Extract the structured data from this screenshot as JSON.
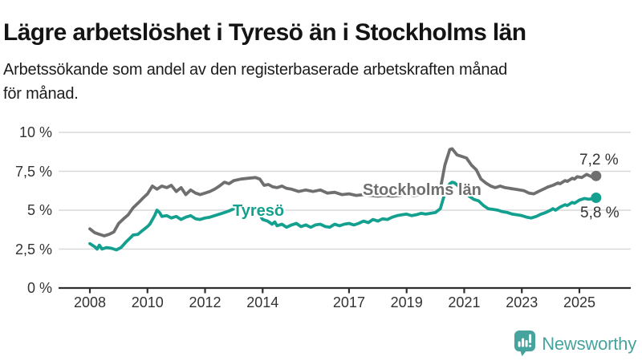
{
  "header": {
    "title": "Lägre arbetslöshet i Tyresö än i Stockholms län",
    "subtitle_line1": "Arbetssökande som andel av den registerbaserade arbetskraften månad",
    "subtitle_line2": "för månad."
  },
  "footer": {
    "brand": "Newsworthy",
    "logo_icon": "bar-chart-speech-bubble-icon"
  },
  "colors": {
    "tyreso": "#14a08f",
    "stockholm": "#6f6f6f",
    "grid": "#d9d9d9",
    "axis": "#2f2f2f",
    "text": "#333333",
    "brand": "#47a39e"
  },
  "chart_data": {
    "type": "line",
    "title": "Lägre arbetslöshet i Tyresö än i Stockholms län",
    "xlabel": "",
    "ylabel": "",
    "x_range": [
      2008,
      2025.7
    ],
    "ylim": [
      0,
      10
    ],
    "grid": "horizontal",
    "legend_position": "inline-labels",
    "y_axis": {
      "ticks": [
        0,
        2.5,
        5,
        7.5,
        10
      ],
      "labels": [
        "0 %",
        "2,5 %",
        "5 %",
        "7,5 %",
        "10 %"
      ]
    },
    "x_axis": {
      "ticks": [
        2008,
        2010,
        2012,
        2014,
        2017,
        2019,
        2021,
        2023,
        2025
      ],
      "labels": [
        "2008",
        "2010",
        "2012",
        "2014",
        "2017",
        "2019",
        "2021",
        "2023",
        "2025"
      ]
    },
    "series": [
      {
        "name": "Stockholms län",
        "color_key": "stockholm",
        "end_label": "7,2 %",
        "end_value": 7.2,
        "points": [
          [
            2008.0,
            3.8
          ],
          [
            2008.17,
            3.55
          ],
          [
            2008.33,
            3.45
          ],
          [
            2008.5,
            3.35
          ],
          [
            2008.67,
            3.45
          ],
          [
            2008.83,
            3.6
          ],
          [
            2009.0,
            4.15
          ],
          [
            2009.17,
            4.45
          ],
          [
            2009.33,
            4.7
          ],
          [
            2009.5,
            5.15
          ],
          [
            2009.67,
            5.45
          ],
          [
            2009.83,
            5.75
          ],
          [
            2010.0,
            6.05
          ],
          [
            2010.17,
            6.55
          ],
          [
            2010.33,
            6.35
          ],
          [
            2010.5,
            6.55
          ],
          [
            2010.67,
            6.45
          ],
          [
            2010.83,
            6.6
          ],
          [
            2011.0,
            6.2
          ],
          [
            2011.17,
            6.45
          ],
          [
            2011.33,
            6.0
          ],
          [
            2011.5,
            6.3
          ],
          [
            2011.67,
            6.1
          ],
          [
            2011.83,
            6.0
          ],
          [
            2012.0,
            6.1
          ],
          [
            2012.17,
            6.2
          ],
          [
            2012.33,
            6.35
          ],
          [
            2012.5,
            6.55
          ],
          [
            2012.67,
            6.8
          ],
          [
            2012.83,
            6.7
          ],
          [
            2013.0,
            6.9
          ],
          [
            2013.25,
            7.0
          ],
          [
            2013.5,
            7.05
          ],
          [
            2013.75,
            7.1
          ],
          [
            2013.9,
            7.0
          ],
          [
            2014.05,
            6.6
          ],
          [
            2014.2,
            6.65
          ],
          [
            2014.35,
            6.5
          ],
          [
            2014.5,
            6.45
          ],
          [
            2014.67,
            6.55
          ],
          [
            2014.83,
            6.4
          ],
          [
            2015.0,
            6.35
          ],
          [
            2015.25,
            6.2
          ],
          [
            2015.5,
            6.3
          ],
          [
            2015.75,
            6.2
          ],
          [
            2016.0,
            6.3
          ],
          [
            2016.25,
            6.1
          ],
          [
            2016.5,
            6.15
          ],
          [
            2016.75,
            6.0
          ],
          [
            2017.0,
            6.05
          ],
          [
            2017.25,
            5.95
          ],
          [
            2017.5,
            6.0
          ],
          [
            2017.75,
            5.95
          ],
          [
            2018.0,
            5.9
          ],
          [
            2018.25,
            5.95
          ],
          [
            2018.5,
            5.9
          ],
          [
            2018.75,
            5.95
          ],
          [
            2019.0,
            6.0
          ],
          [
            2019.25,
            5.95
          ],
          [
            2019.5,
            6.0
          ],
          [
            2019.75,
            6.1
          ],
          [
            2020.0,
            6.15
          ],
          [
            2020.17,
            6.35
          ],
          [
            2020.33,
            7.9
          ],
          [
            2020.5,
            8.9
          ],
          [
            2020.58,
            8.95
          ],
          [
            2020.75,
            8.55
          ],
          [
            2020.92,
            8.45
          ],
          [
            2021.08,
            8.35
          ],
          [
            2021.25,
            7.9
          ],
          [
            2021.42,
            7.6
          ],
          [
            2021.58,
            7.0
          ],
          [
            2021.75,
            6.75
          ],
          [
            2021.92,
            6.55
          ],
          [
            2022.08,
            6.45
          ],
          [
            2022.25,
            6.55
          ],
          [
            2022.42,
            6.45
          ],
          [
            2022.58,
            6.4
          ],
          [
            2022.75,
            6.35
          ],
          [
            2022.92,
            6.3
          ],
          [
            2023.08,
            6.25
          ],
          [
            2023.25,
            6.1
          ],
          [
            2023.42,
            6.05
          ],
          [
            2023.58,
            6.2
          ],
          [
            2023.75,
            6.35
          ],
          [
            2023.92,
            6.5
          ],
          [
            2024.08,
            6.6
          ],
          [
            2024.25,
            6.75
          ],
          [
            2024.33,
            6.7
          ],
          [
            2024.5,
            6.9
          ],
          [
            2024.58,
            6.85
          ],
          [
            2024.75,
            7.05
          ],
          [
            2024.83,
            7.0
          ],
          [
            2024.92,
            7.15
          ],
          [
            2025.08,
            7.1
          ],
          [
            2025.25,
            7.3
          ],
          [
            2025.42,
            7.15
          ],
          [
            2025.58,
            7.2
          ]
        ]
      },
      {
        "name": "Tyresö",
        "color_key": "tyreso",
        "end_label": "5,8 %",
        "end_value": 5.8,
        "points": [
          [
            2008.0,
            2.85
          ],
          [
            2008.17,
            2.65
          ],
          [
            2008.25,
            2.5
          ],
          [
            2008.33,
            2.75
          ],
          [
            2008.42,
            2.5
          ],
          [
            2008.58,
            2.6
          ],
          [
            2008.75,
            2.55
          ],
          [
            2008.92,
            2.45
          ],
          [
            2009.08,
            2.6
          ],
          [
            2009.25,
            2.95
          ],
          [
            2009.42,
            3.25
          ],
          [
            2009.5,
            3.4
          ],
          [
            2009.67,
            3.45
          ],
          [
            2009.83,
            3.7
          ],
          [
            2010.0,
            3.95
          ],
          [
            2010.08,
            4.1
          ],
          [
            2010.25,
            4.65
          ],
          [
            2010.33,
            5.0
          ],
          [
            2010.42,
            4.85
          ],
          [
            2010.5,
            4.6
          ],
          [
            2010.67,
            4.65
          ],
          [
            2010.83,
            4.5
          ],
          [
            2011.0,
            4.6
          ],
          [
            2011.17,
            4.4
          ],
          [
            2011.33,
            4.55
          ],
          [
            2011.5,
            4.65
          ],
          [
            2011.67,
            4.45
          ],
          [
            2011.83,
            4.4
          ],
          [
            2012.0,
            4.5
          ],
          [
            2012.17,
            4.55
          ],
          [
            2012.33,
            4.65
          ],
          [
            2012.5,
            4.75
          ],
          [
            2012.67,
            4.85
          ],
          [
            2012.83,
            4.95
          ],
          [
            2013.0,
            5.1
          ],
          [
            2013.17,
            5.15
          ],
          [
            2013.33,
            5.2
          ],
          [
            2013.5,
            5.1
          ],
          [
            2013.67,
            5.2
          ],
          [
            2013.83,
            4.9
          ],
          [
            2014.0,
            4.4
          ],
          [
            2014.17,
            4.3
          ],
          [
            2014.33,
            4.1
          ],
          [
            2014.42,
            4.25
          ],
          [
            2014.5,
            4.0
          ],
          [
            2014.67,
            4.1
          ],
          [
            2014.83,
            3.9
          ],
          [
            2015.0,
            4.05
          ],
          [
            2015.17,
            4.15
          ],
          [
            2015.33,
            3.95
          ],
          [
            2015.5,
            4.05
          ],
          [
            2015.67,
            3.9
          ],
          [
            2015.83,
            4.05
          ],
          [
            2016.0,
            4.1
          ],
          [
            2016.17,
            3.95
          ],
          [
            2016.33,
            3.9
          ],
          [
            2016.5,
            4.1
          ],
          [
            2016.67,
            4.0
          ],
          [
            2016.83,
            4.1
          ],
          [
            2017.0,
            4.15
          ],
          [
            2017.17,
            4.05
          ],
          [
            2017.33,
            4.15
          ],
          [
            2017.5,
            4.3
          ],
          [
            2017.67,
            4.2
          ],
          [
            2017.83,
            4.4
          ],
          [
            2018.0,
            4.3
          ],
          [
            2018.17,
            4.45
          ],
          [
            2018.33,
            4.4
          ],
          [
            2018.5,
            4.55
          ],
          [
            2018.67,
            4.65
          ],
          [
            2018.83,
            4.7
          ],
          [
            2019.0,
            4.75
          ],
          [
            2019.17,
            4.65
          ],
          [
            2019.33,
            4.7
          ],
          [
            2019.5,
            4.8
          ],
          [
            2019.67,
            4.75
          ],
          [
            2019.83,
            4.8
          ],
          [
            2020.0,
            4.85
          ],
          [
            2020.17,
            5.1
          ],
          [
            2020.33,
            6.1
          ],
          [
            2020.5,
            6.7
          ],
          [
            2020.58,
            6.8
          ],
          [
            2020.67,
            6.75
          ],
          [
            2020.83,
            6.5
          ],
          [
            2021.0,
            6.2
          ],
          [
            2021.17,
            5.9
          ],
          [
            2021.33,
            5.7
          ],
          [
            2021.5,
            5.6
          ],
          [
            2021.67,
            5.3
          ],
          [
            2021.83,
            5.1
          ],
          [
            2022.0,
            5.05
          ],
          [
            2022.17,
            5.0
          ],
          [
            2022.33,
            4.9
          ],
          [
            2022.5,
            4.85
          ],
          [
            2022.67,
            4.75
          ],
          [
            2022.83,
            4.7
          ],
          [
            2023.0,
            4.65
          ],
          [
            2023.17,
            4.55
          ],
          [
            2023.33,
            4.5
          ],
          [
            2023.5,
            4.6
          ],
          [
            2023.67,
            4.75
          ],
          [
            2023.83,
            4.85
          ],
          [
            2024.0,
            5.0
          ],
          [
            2024.08,
            5.1
          ],
          [
            2024.17,
            5.0
          ],
          [
            2024.33,
            5.2
          ],
          [
            2024.5,
            5.35
          ],
          [
            2024.58,
            5.3
          ],
          [
            2024.75,
            5.5
          ],
          [
            2024.83,
            5.45
          ],
          [
            2025.0,
            5.65
          ],
          [
            2025.17,
            5.75
          ],
          [
            2025.33,
            5.7
          ],
          [
            2025.5,
            5.75
          ],
          [
            2025.58,
            5.8
          ]
        ]
      }
    ]
  }
}
